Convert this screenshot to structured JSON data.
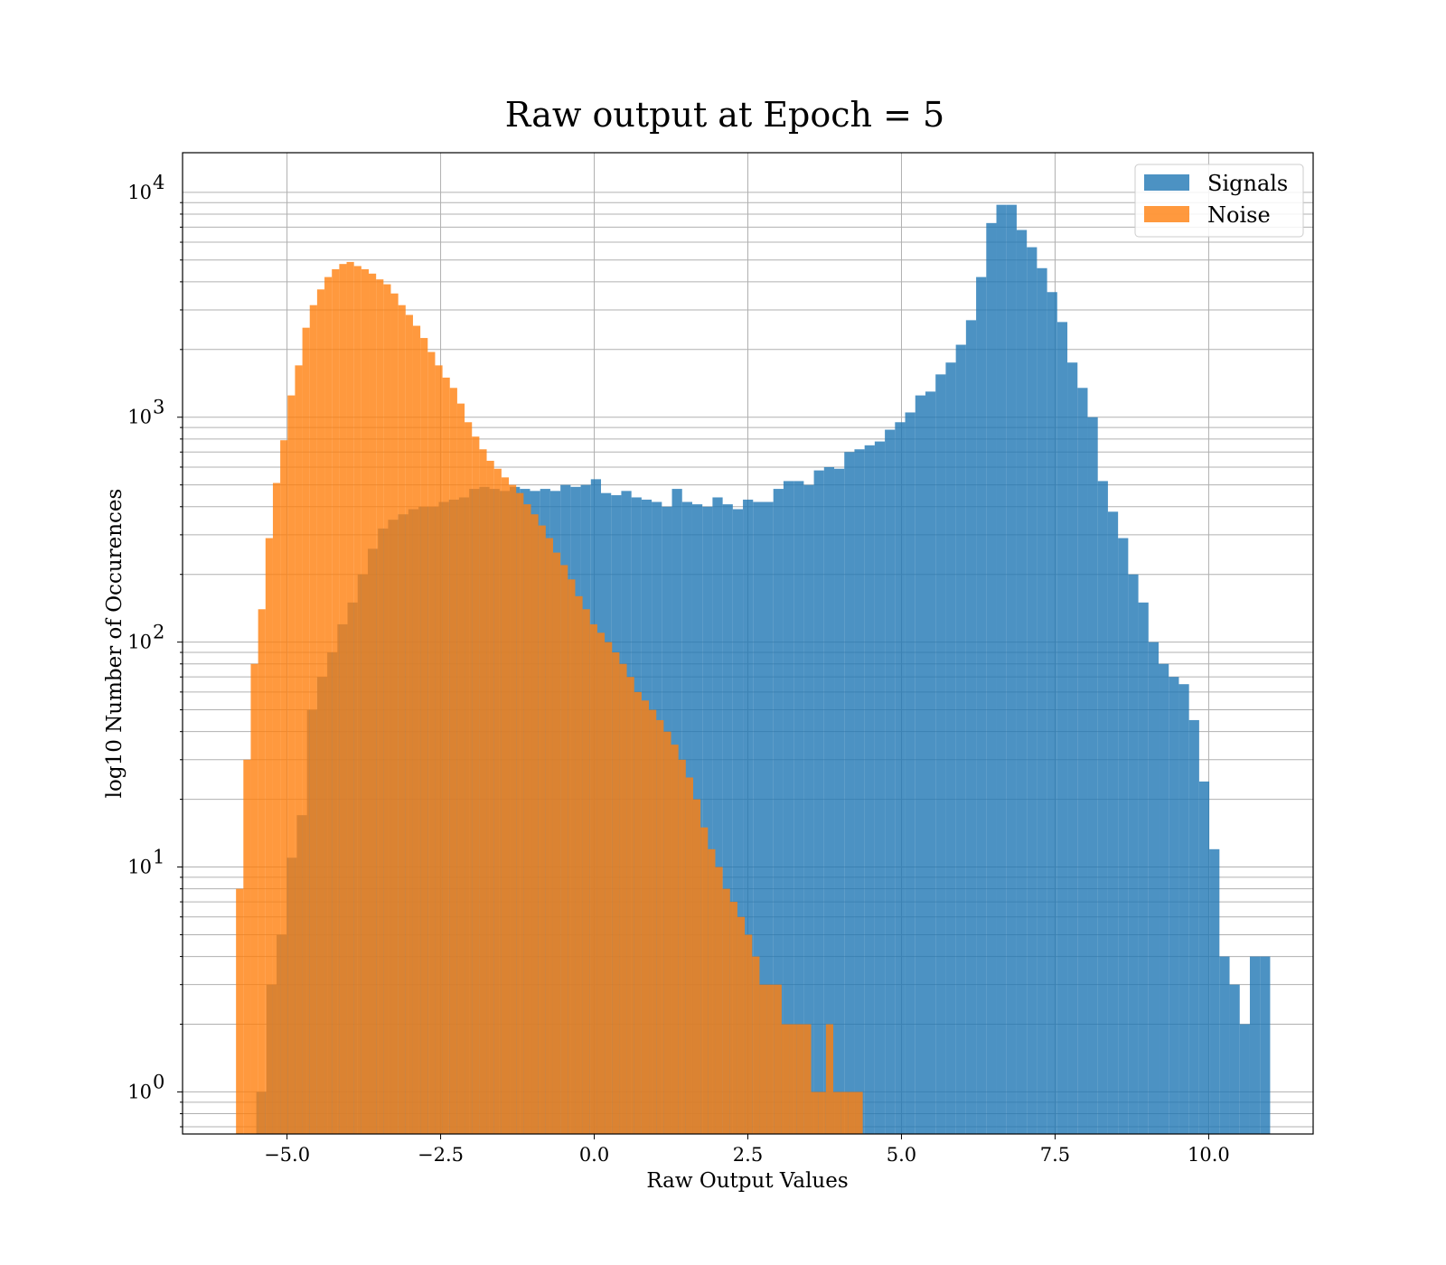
{
  "chart_data": {
    "type": "bar",
    "title": "Raw output at Epoch = 5",
    "xlabel": "Raw Output Values",
    "ylabel": "log10 Number of Occurences",
    "xlim": [
      -6.7,
      11.7
    ],
    "ylim": [
      0.65,
      15000
    ],
    "yscale": "log",
    "grid": true,
    "legend_position": "upper right",
    "x_ticks": [
      {
        "value": -5.0,
        "label": "−5.0"
      },
      {
        "value": -2.5,
        "label": "−2.5"
      },
      {
        "value": 0.0,
        "label": "0.0"
      },
      {
        "value": 2.5,
        "label": "2.5"
      },
      {
        "value": 5.0,
        "label": "5.0"
      },
      {
        "value": 7.5,
        "label": "7.5"
      },
      {
        "value": 10.0,
        "label": "10.0"
      }
    ],
    "y_ticks": [
      {
        "value": 1,
        "base": "10",
        "exp": "0"
      },
      {
        "value": 10,
        "base": "10",
        "exp": "1"
      },
      {
        "value": 100,
        "base": "10",
        "exp": "2"
      },
      {
        "value": 1000,
        "base": "10",
        "exp": "3"
      },
      {
        "value": 10000,
        "base": "10",
        "exp": "4"
      }
    ],
    "series": [
      {
        "name": "Signals",
        "color": "#1f77b4",
        "opacity": 0.8,
        "x_start": -5.5,
        "bin_width": 0.165,
        "values": [
          1,
          3,
          5,
          11,
          17,
          50,
          70,
          90,
          120,
          150,
          200,
          260,
          320,
          350,
          370,
          390,
          400,
          400,
          420,
          430,
          440,
          480,
          490,
          480,
          470,
          490,
          480,
          470,
          480,
          470,
          500,
          490,
          500,
          530,
          460,
          450,
          470,
          440,
          430,
          420,
          400,
          480,
          420,
          410,
          400,
          440,
          410,
          390,
          430,
          420,
          420,
          480,
          520,
          520,
          500,
          580,
          600,
          590,
          700,
          720,
          750,
          780,
          880,
          950,
          1050,
          1250,
          1300,
          1550,
          1750,
          2100,
          2700,
          4200,
          7300,
          8800,
          8800,
          6800,
          5700,
          4600,
          3600,
          2650,
          1750,
          1350,
          1000,
          520,
          380,
          290,
          200,
          150,
          100,
          80,
          70,
          65,
          45,
          24,
          12,
          4,
          3,
          2,
          4,
          4
        ]
      },
      {
        "name": "Noise",
        "color": "#ff7f0e",
        "opacity": 0.8,
        "x_start": -5.83,
        "bin_width": 0.12,
        "values": [
          8,
          30,
          80,
          140,
          290,
          510,
          790,
          1250,
          1700,
          2500,
          3150,
          3700,
          4200,
          4550,
          4800,
          4900,
          4700,
          4550,
          4350,
          4100,
          3900,
          3550,
          3150,
          2850,
          2550,
          2250,
          1950,
          1700,
          1500,
          1350,
          1150,
          950,
          820,
          720,
          640,
          590,
          540,
          500,
          460,
          410,
          370,
          330,
          290,
          250,
          220,
          190,
          160,
          140,
          120,
          110,
          100,
          90,
          80,
          70,
          60,
          55,
          50,
          45,
          40,
          35,
          30,
          25,
          20,
          15,
          12,
          10,
          8,
          7,
          6,
          5,
          4,
          3,
          3,
          3,
          2,
          2,
          2,
          2,
          1,
          1,
          2,
          1,
          1,
          1,
          1
        ]
      }
    ]
  }
}
